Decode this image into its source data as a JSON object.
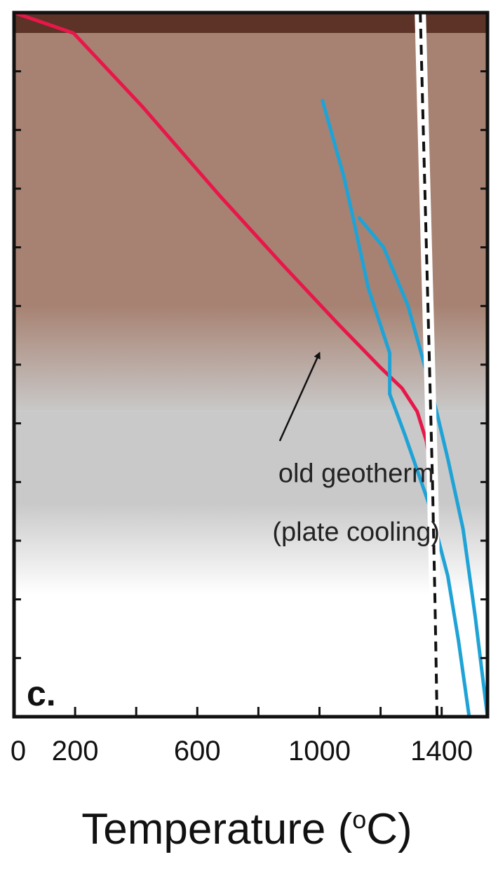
{
  "chart_data": {
    "type": "line",
    "panel_label": "c.",
    "xlabel": "Temperature",
    "xlabel_unit_sup": "o",
    "xlabel_unit": "C",
    "xlim": [
      0,
      1550
    ],
    "xticks": [
      0,
      200,
      400,
      600,
      800,
      1000,
      1200,
      1400
    ],
    "xtick_labels": [
      "0",
      "200",
      "600",
      "1000",
      "1400"
    ],
    "xtick_labels_at": [
      0,
      200,
      600,
      1000,
      1400
    ],
    "ylim": [
      0,
      12
    ],
    "yticks": [
      1,
      2,
      3,
      4,
      5,
      6,
      7,
      8,
      9,
      10,
      11
    ],
    "ylabel": "",
    "y_inverted": true,
    "grid": false,
    "bands": [
      {
        "role": "upper layer",
        "from": 0,
        "to": 0.35,
        "color": "#5c3326"
      },
      {
        "role": "lithosphere",
        "from": 0.35,
        "to": 6.8,
        "color": "#a78272",
        "fade_to": "#c9c9c9",
        "fade_start": 6.0
      },
      {
        "role": "asthenosphere",
        "from": 6.8,
        "to": 12,
        "color": "#c9c9c9",
        "fade_to": "#ffffff",
        "fade_start": 8.6
      }
    ],
    "series": [
      {
        "role": "old geotherm",
        "color": "#e8174a",
        "style": "solid",
        "x": [
          0,
          195,
          420,
          670,
          880,
          1060,
          1200,
          1270,
          1320,
          1350,
          1365
        ],
        "y": [
          0,
          0.35,
          1.6,
          3.1,
          4.3,
          5.3,
          6.05,
          6.4,
          6.8,
          7.3,
          7.8
        ]
      },
      {
        "role": "old geotherm deep",
        "color": "#e8174a",
        "style": "dashed-red",
        "x": [
          1365,
          1370,
          1378,
          1385
        ],
        "y": [
          7.8,
          9.0,
          10.5,
          12
        ]
      },
      {
        "role": "blue 1",
        "color": "#1fa3d6",
        "style": "solid",
        "x": [
          1010,
          1080,
          1110,
          1160,
          1230,
          1230,
          1280,
          1360,
          1420,
          1455,
          1490
        ],
        "y": [
          1.5,
          2.8,
          3.5,
          4.7,
          5.8,
          6.5,
          7.2,
          8.4,
          9.6,
          10.7,
          12
        ]
      },
      {
        "role": "blue 2",
        "color": "#1fa3d6",
        "style": "solid",
        "x": [
          1130,
          1210,
          1290,
          1365,
          1420,
          1470,
          1510,
          1550
        ],
        "y": [
          3.5,
          4.0,
          5.0,
          6.4,
          7.6,
          8.8,
          10.3,
          12
        ]
      },
      {
        "role": "adiabat",
        "color": "#111111",
        "style": "dashed-white",
        "x": [
          1330,
          1340,
          1350,
          1360,
          1370,
          1378,
          1385
        ],
        "y": [
          0,
          2.0,
          4.0,
          6.0,
          8.0,
          10.0,
          12
        ]
      }
    ],
    "annotations": [
      {
        "text": "old geotherm",
        "x": 1120,
        "y": 8.0
      },
      {
        "text": "(plate cooling)",
        "x": 1120,
        "y": 9.0
      }
    ],
    "arrow": {
      "from": [
        870,
        7.3
      ],
      "to": [
        1000,
        5.8
      ]
    }
  }
}
